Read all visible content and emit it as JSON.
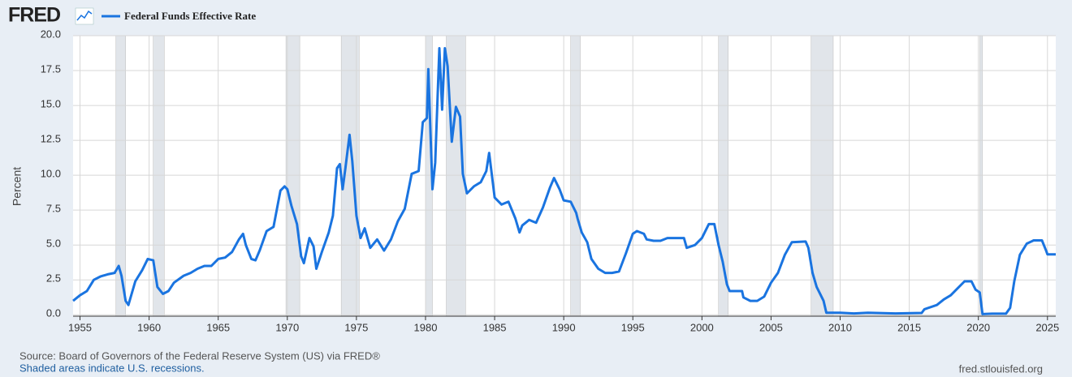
{
  "chart_data": {
    "type": "line",
    "logo": "FRED",
    "y_label": "Percent",
    "source": "Source: Board of Governors of the Federal Reserve System (US) via FRED®",
    "note": "Shaded areas indicate U.S. recessions.",
    "site": "fred.stlouisfed.org",
    "grid": true,
    "xlim": [
      1954.5,
      2025.6
    ],
    "ylim": [
      -0.1,
      20
    ],
    "xticks": [
      1955,
      1960,
      1965,
      1970,
      1975,
      1980,
      1985,
      1990,
      1995,
      2000,
      2005,
      2010,
      2015,
      2020,
      2025
    ],
    "yticks": [
      {
        "value": 0,
        "label": "0.0"
      },
      2.5,
      {
        "value": 5,
        "label": "5.0"
      },
      7.5,
      {
        "value": 10,
        "label": "10.0"
      },
      12.5,
      {
        "value": 15,
        "label": "15.0"
      },
      17.5,
      {
        "value": 20,
        "label": "20.0"
      }
    ],
    "recession_color": "#e1e5ea",
    "recessions": [
      [
        1957.6,
        1958.3
      ],
      [
        1960.3,
        1961.1
      ],
      [
        1969.9,
        1970.9
      ],
      [
        1973.9,
        1975.2
      ],
      [
        1980.0,
        1980.5
      ],
      [
        1981.5,
        1982.9
      ],
      [
        1990.5,
        1991.2
      ],
      [
        2001.2,
        2001.9
      ],
      [
        2007.9,
        2009.5
      ],
      [
        2020.1,
        2020.3
      ]
    ],
    "x": [
      1954.5,
      1955.0,
      1955.5,
      1956.0,
      1956.5,
      1957.0,
      1957.5,
      1957.8,
      1958.0,
      1958.3,
      1958.5,
      1959.0,
      1959.5,
      1959.9,
      1960.3,
      1960.6,
      1961.0,
      1961.4,
      1961.8,
      1962.5,
      1963.0,
      1963.5,
      1964.0,
      1964.5,
      1965.0,
      1965.5,
      1966.0,
      1966.5,
      1966.8,
      1967.0,
      1967.4,
      1967.7,
      1968.0,
      1968.5,
      1969.0,
      1969.5,
      1969.8,
      1970.0,
      1970.3,
      1970.7,
      1971.0,
      1971.2,
      1971.6,
      1971.9,
      1972.1,
      1972.5,
      1973.0,
      1973.3,
      1973.6,
      1973.8,
      1974.0,
      1974.2,
      1974.5,
      1974.7,
      1975.0,
      1975.3,
      1975.6,
      1976.0,
      1976.5,
      1977.0,
      1977.5,
      1978.0,
      1978.5,
      1979.0,
      1979.5,
      1979.8,
      1980.1,
      1980.2,
      1980.5,
      1980.7,
      1981.0,
      1981.2,
      1981.4,
      1981.6,
      1981.9,
      1982.2,
      1982.5,
      1982.7,
      1983.0,
      1983.5,
      1984.0,
      1984.4,
      1984.6,
      1985.0,
      1985.5,
      1986.0,
      1986.5,
      1986.8,
      1987.0,
      1987.5,
      1988.0,
      1988.5,
      1989.0,
      1989.3,
      1989.7,
      1990.0,
      1990.5,
      1990.9,
      1991.0,
      1991.3,
      1991.7,
      1992.0,
      1992.5,
      1993.0,
      1993.5,
      1994.0,
      1994.5,
      1995.0,
      1995.3,
      1995.8,
      1996.0,
      1996.5,
      1997.0,
      1997.5,
      1998.0,
      1998.7,
      1998.9,
      1999.5,
      2000.0,
      2000.5,
      2000.9,
      2001.2,
      2001.5,
      2001.8,
      2002.0,
      2002.9,
      2003.0,
      2003.5,
      2004.0,
      2004.5,
      2005.0,
      2005.5,
      2006.0,
      2006.5,
      2007.5,
      2007.7,
      2008.0,
      2008.3,
      2008.8,
      2009.0,
      2010.0,
      2011.0,
      2012.0,
      2014.0,
      2015.9,
      2016.1,
      2017.0,
      2017.5,
      2018.0,
      2018.5,
      2019.0,
      2019.5,
      2019.8,
      2020.1,
      2020.3,
      2021.0,
      2022.0,
      2022.3,
      2022.6,
      2023.0,
      2023.5,
      2024.0,
      2024.6,
      2024.9,
      2025.0,
      2025.6
    ],
    "series": [
      {
        "name": "Federal Funds Effective Rate",
        "color": "#1a74e0",
        "values": [
          1.0,
          1.4,
          1.7,
          2.5,
          2.75,
          2.9,
          3.0,
          3.5,
          2.8,
          1.0,
          0.7,
          2.4,
          3.2,
          4.0,
          3.9,
          2.0,
          1.5,
          1.7,
          2.3,
          2.8,
          3.0,
          3.3,
          3.5,
          3.5,
          4.0,
          4.1,
          4.5,
          5.4,
          5.8,
          5.0,
          4.0,
          3.9,
          4.6,
          6.0,
          6.3,
          8.9,
          9.2,
          9.0,
          7.8,
          6.5,
          4.2,
          3.7,
          5.5,
          4.9,
          3.3,
          4.5,
          5.9,
          7.1,
          10.5,
          10.8,
          9.0,
          10.5,
          12.9,
          11.0,
          7.1,
          5.5,
          6.2,
          4.8,
          5.4,
          4.6,
          5.4,
          6.7,
          7.6,
          10.1,
          10.3,
          13.8,
          14.1,
          17.6,
          9.0,
          10.9,
          19.1,
          14.7,
          19.1,
          17.8,
          12.4,
          14.9,
          14.2,
          10.1,
          8.7,
          9.2,
          9.5,
          10.3,
          11.6,
          8.4,
          7.9,
          8.1,
          6.9,
          5.9,
          6.4,
          6.8,
          6.6,
          7.7,
          9.1,
          9.8,
          9.0,
          8.2,
          8.1,
          7.3,
          6.9,
          5.9,
          5.2,
          4.0,
          3.3,
          3.0,
          3.0,
          3.1,
          4.4,
          5.8,
          6.0,
          5.8,
          5.4,
          5.3,
          5.3,
          5.5,
          5.5,
          5.5,
          4.8,
          5.0,
          5.5,
          6.5,
          6.5,
          5.0,
          3.8,
          2.2,
          1.7,
          1.7,
          1.25,
          1.0,
          1.0,
          1.3,
          2.3,
          3.0,
          4.3,
          5.2,
          5.25,
          4.8,
          3.0,
          2.0,
          1.0,
          0.15,
          0.15,
          0.1,
          0.15,
          0.1,
          0.13,
          0.4,
          0.7,
          1.1,
          1.4,
          1.9,
          2.4,
          2.4,
          1.8,
          1.6,
          0.05,
          0.08,
          0.08,
          0.5,
          2.4,
          4.3,
          5.1,
          5.33,
          5.33,
          4.6,
          4.33,
          4.33
        ]
      }
    ]
  }
}
